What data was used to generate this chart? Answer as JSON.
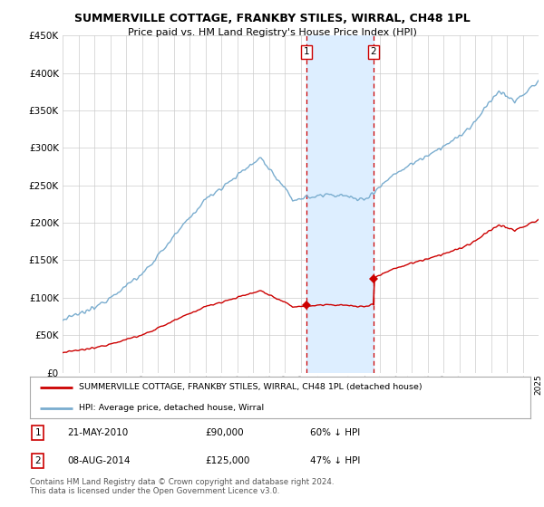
{
  "title": "SUMMERVILLE COTTAGE, FRANKBY STILES, WIRRAL, CH48 1PL",
  "subtitle": "Price paid vs. HM Land Registry's House Price Index (HPI)",
  "ylim": [
    0,
    450000
  ],
  "ylabel_ticks": [
    0,
    50000,
    100000,
    150000,
    200000,
    250000,
    300000,
    350000,
    400000,
    450000
  ],
  "ylabel_labels": [
    "£0",
    "£50K",
    "£100K",
    "£150K",
    "£200K",
    "£250K",
    "£300K",
    "£350K",
    "£400K",
    "£450K"
  ],
  "sale1": {
    "date_num": 2010.38,
    "price": 90000,
    "label": "1"
  },
  "sale2": {
    "date_num": 2014.59,
    "price": 125000,
    "label": "2"
  },
  "legend_red": "SUMMERVILLE COTTAGE, FRANKBY STILES, WIRRAL, CH48 1PL (detached house)",
  "legend_blue": "HPI: Average price, detached house, Wirral",
  "footnote": "Contains HM Land Registry data © Crown copyright and database right 2024.\nThis data is licensed under the Open Government Licence v3.0.",
  "red_color": "#cc0000",
  "blue_color": "#7aadcf",
  "shade_color": "#ddeeff",
  "grid_color": "#cccccc",
  "background_color": "#ffffff",
  "ann1_date": "21-MAY-2010",
  "ann1_price": "£90,000",
  "ann1_hpi": "60% ↓ HPI",
  "ann2_date": "08-AUG-2014",
  "ann2_price": "£125,000",
  "ann2_hpi": "47% ↓ HPI"
}
